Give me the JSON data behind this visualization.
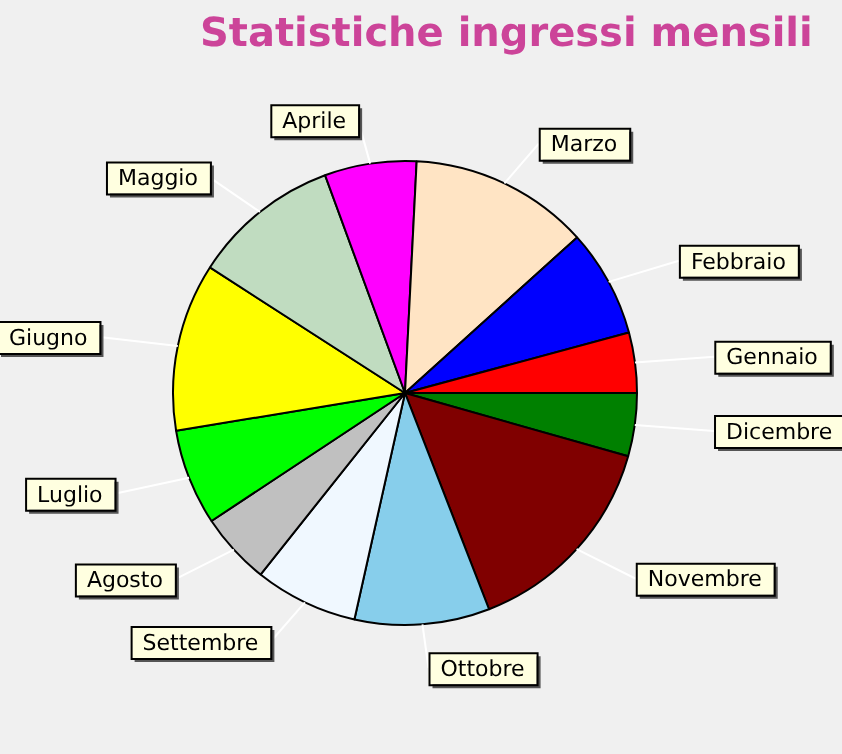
{
  "chart_data": {
    "type": "pie",
    "title": "Statistiche ingressi mensili",
    "categories": [
      "Gennaio",
      "Febbraio",
      "Marzo",
      "Aprile",
      "Maggio",
      "Giugno",
      "Luglio",
      "Agosto",
      "Settembre",
      "Ottobre",
      "Novembre",
      "Dicembre"
    ],
    "values": [
      4.2,
      7.5,
      12.5,
      6.4,
      10.3,
      11.7,
      6.7,
      5,
      7.2,
      9.4,
      14.7,
      4.4
    ],
    "colors": [
      "#ff0000",
      "#0000ff",
      "#ffe4c4",
      "#ff00ff",
      "#c0dcc0",
      "#ffff00",
      "#00ff00",
      "#c0c0c0",
      "#f0f8ff",
      "#87ceeb",
      "#800000",
      "#008000"
    ],
    "legend": false
  }
}
